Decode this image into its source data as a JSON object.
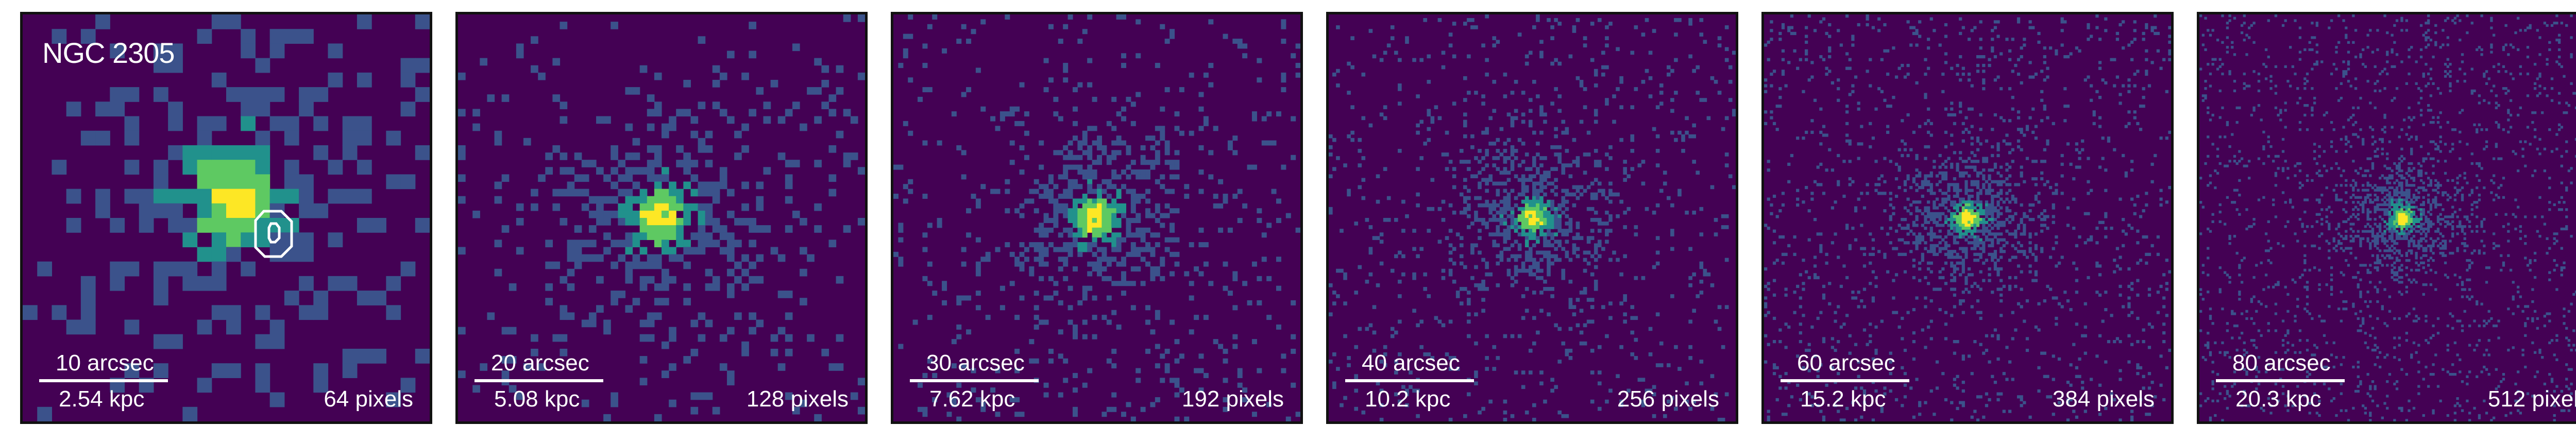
{
  "title": "NGC 2305",
  "palette": {
    "background": "#440154",
    "low": "#3b528b",
    "mid": "#21918c",
    "high": "#5ec962",
    "peak": "#fde725",
    "contour": "#ffffff"
  },
  "panels": [
    {
      "arcsec": "10 arcsec",
      "kpc": "2.54 kpc",
      "pixels": "64 pixels"
    },
    {
      "arcsec": "20 arcsec",
      "kpc": "5.08 kpc",
      "pixels": "128 pixels"
    },
    {
      "arcsec": "30 arcsec",
      "kpc": "7.62 kpc",
      "pixels": "192 pixels"
    },
    {
      "arcsec": "40 arcsec",
      "kpc": "10.2 kpc",
      "pixels": "256 pixels"
    },
    {
      "arcsec": "60 arcsec",
      "kpc": "15.2 kpc",
      "pixels": "384 pixels"
    },
    {
      "arcsec": "80 arcsec",
      "kpc": "20.3 kpc",
      "pixels": "512 pixels"
    }
  ]
}
